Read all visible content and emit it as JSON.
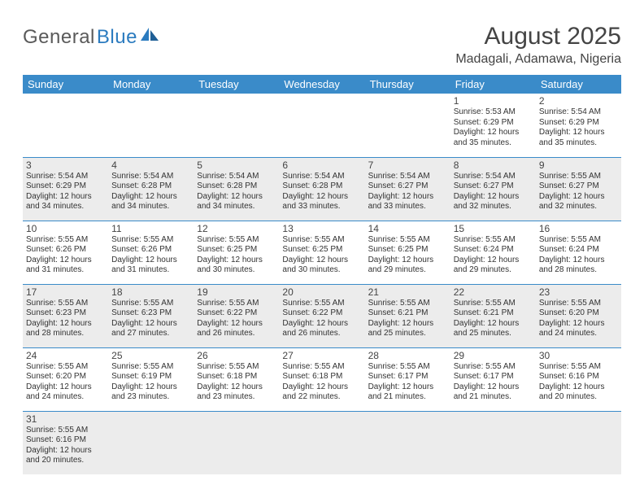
{
  "logo": {
    "part1": "General",
    "part2": "Blue"
  },
  "title": "August 2025",
  "location": "Madagali, Adamawa, Nigeria",
  "colors": {
    "header_bg": "#3a8bc9",
    "header_text": "#ffffff",
    "shade_bg": "#ececec",
    "border": "#3a8bc9",
    "logo_gray": "#5a5a5a",
    "logo_blue": "#2b7bbf"
  },
  "weekdays": [
    "Sunday",
    "Monday",
    "Tuesday",
    "Wednesday",
    "Thursday",
    "Friday",
    "Saturday"
  ],
  "weeks": [
    [
      null,
      null,
      null,
      null,
      null,
      {
        "n": "1",
        "sr": "5:53 AM",
        "ss": "6:29 PM",
        "dl": "12 hours and 35 minutes."
      },
      {
        "n": "2",
        "sr": "5:54 AM",
        "ss": "6:29 PM",
        "dl": "12 hours and 35 minutes."
      }
    ],
    [
      {
        "n": "3",
        "sr": "5:54 AM",
        "ss": "6:29 PM",
        "dl": "12 hours and 34 minutes."
      },
      {
        "n": "4",
        "sr": "5:54 AM",
        "ss": "6:28 PM",
        "dl": "12 hours and 34 minutes."
      },
      {
        "n": "5",
        "sr": "5:54 AM",
        "ss": "6:28 PM",
        "dl": "12 hours and 34 minutes."
      },
      {
        "n": "6",
        "sr": "5:54 AM",
        "ss": "6:28 PM",
        "dl": "12 hours and 33 minutes."
      },
      {
        "n": "7",
        "sr": "5:54 AM",
        "ss": "6:27 PM",
        "dl": "12 hours and 33 minutes."
      },
      {
        "n": "8",
        "sr": "5:54 AM",
        "ss": "6:27 PM",
        "dl": "12 hours and 32 minutes."
      },
      {
        "n": "9",
        "sr": "5:55 AM",
        "ss": "6:27 PM",
        "dl": "12 hours and 32 minutes."
      }
    ],
    [
      {
        "n": "10",
        "sr": "5:55 AM",
        "ss": "6:26 PM",
        "dl": "12 hours and 31 minutes."
      },
      {
        "n": "11",
        "sr": "5:55 AM",
        "ss": "6:26 PM",
        "dl": "12 hours and 31 minutes."
      },
      {
        "n": "12",
        "sr": "5:55 AM",
        "ss": "6:25 PM",
        "dl": "12 hours and 30 minutes."
      },
      {
        "n": "13",
        "sr": "5:55 AM",
        "ss": "6:25 PM",
        "dl": "12 hours and 30 minutes."
      },
      {
        "n": "14",
        "sr": "5:55 AM",
        "ss": "6:25 PM",
        "dl": "12 hours and 29 minutes."
      },
      {
        "n": "15",
        "sr": "5:55 AM",
        "ss": "6:24 PM",
        "dl": "12 hours and 29 minutes."
      },
      {
        "n": "16",
        "sr": "5:55 AM",
        "ss": "6:24 PM",
        "dl": "12 hours and 28 minutes."
      }
    ],
    [
      {
        "n": "17",
        "sr": "5:55 AM",
        "ss": "6:23 PM",
        "dl": "12 hours and 28 minutes."
      },
      {
        "n": "18",
        "sr": "5:55 AM",
        "ss": "6:23 PM",
        "dl": "12 hours and 27 minutes."
      },
      {
        "n": "19",
        "sr": "5:55 AM",
        "ss": "6:22 PM",
        "dl": "12 hours and 26 minutes."
      },
      {
        "n": "20",
        "sr": "5:55 AM",
        "ss": "6:22 PM",
        "dl": "12 hours and 26 minutes."
      },
      {
        "n": "21",
        "sr": "5:55 AM",
        "ss": "6:21 PM",
        "dl": "12 hours and 25 minutes."
      },
      {
        "n": "22",
        "sr": "5:55 AM",
        "ss": "6:21 PM",
        "dl": "12 hours and 25 minutes."
      },
      {
        "n": "23",
        "sr": "5:55 AM",
        "ss": "6:20 PM",
        "dl": "12 hours and 24 minutes."
      }
    ],
    [
      {
        "n": "24",
        "sr": "5:55 AM",
        "ss": "6:20 PM",
        "dl": "12 hours and 24 minutes."
      },
      {
        "n": "25",
        "sr": "5:55 AM",
        "ss": "6:19 PM",
        "dl": "12 hours and 23 minutes."
      },
      {
        "n": "26",
        "sr": "5:55 AM",
        "ss": "6:18 PM",
        "dl": "12 hours and 23 minutes."
      },
      {
        "n": "27",
        "sr": "5:55 AM",
        "ss": "6:18 PM",
        "dl": "12 hours and 22 minutes."
      },
      {
        "n": "28",
        "sr": "5:55 AM",
        "ss": "6:17 PM",
        "dl": "12 hours and 21 minutes."
      },
      {
        "n": "29",
        "sr": "5:55 AM",
        "ss": "6:17 PM",
        "dl": "12 hours and 21 minutes."
      },
      {
        "n": "30",
        "sr": "5:55 AM",
        "ss": "6:16 PM",
        "dl": "12 hours and 20 minutes."
      }
    ],
    [
      {
        "n": "31",
        "sr": "5:55 AM",
        "ss": "6:16 PM",
        "dl": "12 hours and 20 minutes."
      },
      null,
      null,
      null,
      null,
      null,
      null
    ]
  ],
  "labels": {
    "sunrise": "Sunrise:",
    "sunset": "Sunset:",
    "daylight": "Daylight:"
  }
}
